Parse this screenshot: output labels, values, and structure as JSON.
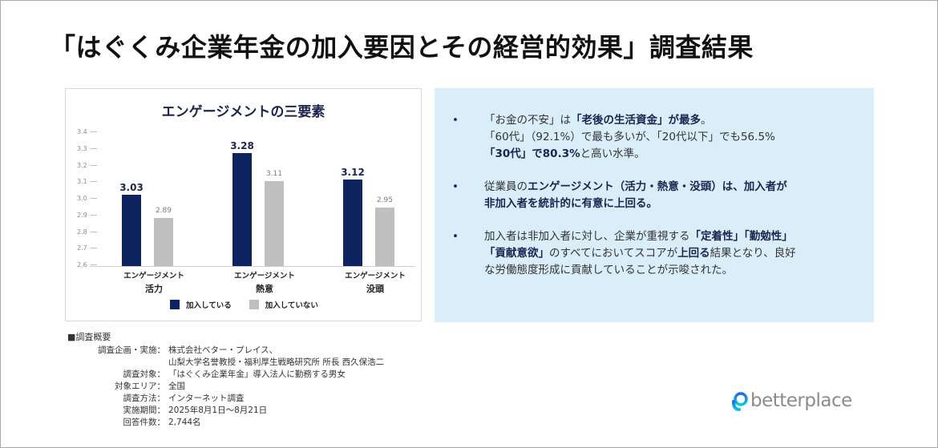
{
  "page": {
    "title": "「はぐくみ企業年金の加入要因とその経営的効果」調査結果"
  },
  "chart_data": {
    "type": "bar",
    "title": "エンゲージメントの三要素",
    "categories": [
      {
        "line1": "エンゲージメント",
        "line2": "活力"
      },
      {
        "line1": "エンゲージメント",
        "line2": "熱意"
      },
      {
        "line1": "エンゲージメント",
        "line2": "没頭"
      }
    ],
    "series": [
      {
        "name": "加入している",
        "color": "#0d2461",
        "values": [
          3.03,
          3.28,
          3.12
        ],
        "labels": [
          "3.03",
          "3.28",
          "3.12"
        ]
      },
      {
        "name": "加入していない",
        "color": "#bfbfbf",
        "values": [
          2.89,
          3.11,
          2.95
        ],
        "labels": [
          "2.89",
          "3.11",
          "2.95"
        ]
      }
    ],
    "yticks": [
      "3.4",
      "3.3",
      "3.2",
      "3.1",
      "3.0",
      "2.9",
      "2.8",
      "2.7",
      "2.6"
    ],
    "ylim": [
      2.6,
      3.4
    ],
    "xlabel": "",
    "ylabel": "",
    "legend_position": "bottom",
    "grid": false
  },
  "summary": {
    "bullet_char": "•",
    "items": [
      {
        "segments": [
          [
            "「お金の不安」は",
            false
          ],
          [
            "「老後の生活資金」が最多",
            true
          ],
          [
            "。",
            false
          ],
          [
            "\n「60代」（92.1%）で最も多いが、「20代以下」でも56.5%\n",
            false
          ],
          [
            "「30代」で80.3%",
            true
          ],
          [
            "と高い水準。",
            false
          ]
        ]
      },
      {
        "segments": [
          [
            "従業員の",
            false
          ],
          [
            "エンゲージメント（活力・熱意・没頭）は、加入者が\n非加入者を統計的に有意に上回る。",
            true
          ]
        ]
      },
      {
        "segments": [
          [
            "加入者は非加入者に対し、企業が重視する",
            false
          ],
          [
            "「定着性」「勤勉性」\n「貢献意欲」",
            true
          ],
          [
            "のすべてにおいてスコアが",
            false
          ],
          [
            "上回る",
            true
          ],
          [
            "結果となり、良好\nな労働態度形成に貢献していることが示唆された。",
            false
          ]
        ]
      }
    ]
  },
  "overview": {
    "heading": "■調査概要",
    "rows": [
      {
        "key": "調査企画・実施：",
        "value": "株式会社ベター・プレイス、"
      },
      {
        "key": "",
        "value": "山梨大学名誉教授・福利厚生戦略研究所 所長 西久保浩二"
      },
      {
        "key": "調査対象：",
        "value": "「はぐくみ企業年金」導入法人に勤務する男女"
      },
      {
        "key": "対象エリア：",
        "value": "全国"
      },
      {
        "key": "調査方法：",
        "value": "インターネット調査"
      },
      {
        "key": "実施期間：",
        "value": "2025年8月1日～8月21日"
      },
      {
        "key": "回答件数：",
        "value": "2,744名"
      }
    ]
  },
  "logo": {
    "word": "betterplace",
    "icon": "betterplace-logo-icon",
    "colors": {
      "icon_start": "#1e88e5",
      "icon_end": "#00c8f0",
      "word": "#8b8b8b"
    }
  }
}
